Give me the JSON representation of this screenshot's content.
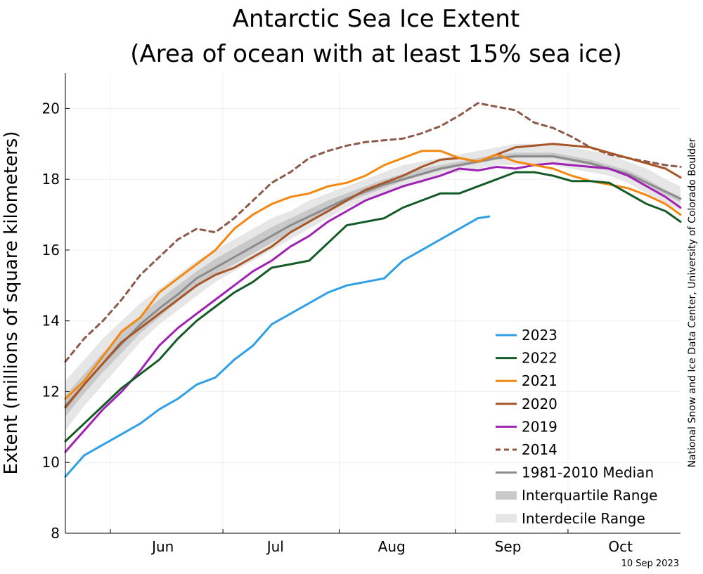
{
  "chart_data": {
    "type": "line",
    "title": "Antarctic Sea Ice Extent",
    "subtitle": "(Area of ocean with at least 15% sea ice)",
    "ylabel": "Extent (millions of square kilometers)",
    "xlabel": "",
    "ylim": [
      8,
      21
    ],
    "yticks": [
      8,
      10,
      12,
      14,
      16,
      18,
      20
    ],
    "xlim": [
      "05-20",
      "10-31"
    ],
    "month_ticks": [
      {
        "label": "Jun",
        "date": "06-15"
      },
      {
        "label": "Jul",
        "date": "07-15"
      },
      {
        "label": "Aug",
        "date": "08-15"
      },
      {
        "label": "Sep",
        "date": "09-15"
      },
      {
        "label": "Oct",
        "date": "10-15"
      }
    ],
    "month_boundaries": [
      "06-01",
      "07-01",
      "08-01",
      "09-01",
      "10-01"
    ],
    "grid": true,
    "legend_position": "lower-right",
    "x": [
      "05-20",
      "05-25",
      "05-30",
      "06-04",
      "06-09",
      "06-14",
      "06-19",
      "06-24",
      "06-29",
      "07-04",
      "07-09",
      "07-14",
      "07-19",
      "07-24",
      "07-29",
      "08-03",
      "08-08",
      "08-13",
      "08-18",
      "08-23",
      "08-28",
      "09-02",
      "09-07",
      "09-12",
      "09-17",
      "09-22",
      "09-27",
      "10-02",
      "10-07",
      "10-12",
      "10-17",
      "10-22",
      "10-27",
      "10-31"
    ],
    "interdecile": {
      "low": [
        10.9,
        11.6,
        12.2,
        12.8,
        13.4,
        13.9,
        14.3,
        14.7,
        15.1,
        15.4,
        15.7,
        16.0,
        16.3,
        16.6,
        16.9,
        17.2,
        17.4,
        17.6,
        17.8,
        17.9,
        18.1,
        18.2,
        18.3,
        18.4,
        18.4,
        18.4,
        18.4,
        18.3,
        18.2,
        18.1,
        17.9,
        17.6,
        17.3,
        17.1
      ],
      "high": [
        12.3,
        12.9,
        13.5,
        14.0,
        14.5,
        14.9,
        15.3,
        15.7,
        16.0,
        16.3,
        16.6,
        16.9,
        17.1,
        17.4,
        17.6,
        17.8,
        18.0,
        18.2,
        18.4,
        18.5,
        18.6,
        18.7,
        18.8,
        18.9,
        19.0,
        19.0,
        19.0,
        18.9,
        18.8,
        18.7,
        18.5,
        18.3,
        18.0,
        17.8
      ]
    },
    "interquartile": {
      "low": [
        11.3,
        11.95,
        12.55,
        13.1,
        13.65,
        14.1,
        14.55,
        14.95,
        15.3,
        15.6,
        15.9,
        16.2,
        16.5,
        16.8,
        17.05,
        17.35,
        17.55,
        17.75,
        17.95,
        18.1,
        18.25,
        18.35,
        18.45,
        18.55,
        18.6,
        18.6,
        18.6,
        18.5,
        18.4,
        18.25,
        18.1,
        17.85,
        17.55,
        17.35
      ],
      "high": [
        11.9,
        12.5,
        13.1,
        13.65,
        14.15,
        14.6,
        15.0,
        15.4,
        15.75,
        16.05,
        16.35,
        16.65,
        16.9,
        17.15,
        17.4,
        17.6,
        17.8,
        18.0,
        18.15,
        18.3,
        18.4,
        18.5,
        18.6,
        18.7,
        18.75,
        18.75,
        18.75,
        18.65,
        18.55,
        18.4,
        18.25,
        18.0,
        17.7,
        17.5
      ]
    },
    "series": [
      {
        "name": "2023",
        "color": "#2f9fe6",
        "dash": "solid",
        "x": [
          "05-20",
          "05-25",
          "05-30",
          "06-04",
          "06-09",
          "06-14",
          "06-19",
          "06-24",
          "06-29",
          "07-04",
          "07-09",
          "07-14",
          "07-19",
          "07-24",
          "07-29",
          "08-03",
          "08-08",
          "08-13",
          "08-18",
          "08-23",
          "08-28",
          "09-02",
          "09-07",
          "09-10"
        ],
        "values": [
          9.6,
          10.2,
          10.5,
          10.8,
          11.1,
          11.5,
          11.8,
          12.2,
          12.4,
          12.9,
          13.3,
          13.9,
          14.2,
          14.5,
          14.8,
          15.0,
          15.1,
          15.2,
          15.7,
          16.0,
          16.3,
          16.6,
          16.9,
          16.95
        ]
      },
      {
        "name": "2022",
        "color": "#155b28",
        "dash": "solid",
        "values": [
          10.6,
          11.1,
          11.6,
          12.1,
          12.5,
          12.9,
          13.5,
          14.0,
          14.4,
          14.8,
          15.1,
          15.5,
          15.6,
          15.7,
          16.2,
          16.7,
          16.8,
          16.9,
          17.2,
          17.4,
          17.6,
          17.6,
          17.8,
          18.0,
          18.2,
          18.2,
          18.1,
          17.95,
          17.95,
          17.9,
          17.6,
          17.3,
          17.1,
          16.8
        ]
      },
      {
        "name": "2021",
        "color": "#f4870e",
        "dash": "solid",
        "values": [
          11.8,
          12.3,
          13.0,
          13.7,
          14.1,
          14.8,
          15.2,
          15.6,
          16.0,
          16.6,
          17.0,
          17.3,
          17.5,
          17.6,
          17.8,
          17.9,
          18.1,
          18.4,
          18.6,
          18.8,
          18.8,
          18.6,
          18.5,
          18.7,
          18.5,
          18.4,
          18.3,
          18.1,
          17.95,
          17.85,
          17.75,
          17.55,
          17.3,
          17.0
        ]
      },
      {
        "name": "2020",
        "color": "#a65628",
        "dash": "solid",
        "values": [
          11.55,
          12.2,
          12.8,
          13.4,
          13.8,
          14.2,
          14.6,
          15.0,
          15.3,
          15.5,
          15.8,
          16.1,
          16.5,
          16.8,
          17.1,
          17.4,
          17.7,
          17.9,
          18.1,
          18.35,
          18.55,
          18.6,
          18.5,
          18.7,
          18.9,
          18.95,
          19.0,
          18.95,
          18.9,
          18.75,
          18.6,
          18.45,
          18.3,
          18.05
        ]
      },
      {
        "name": "2019",
        "color": "#9f22b3",
        "dash": "solid",
        "values": [
          10.3,
          10.9,
          11.5,
          12.0,
          12.6,
          13.3,
          13.8,
          14.2,
          14.6,
          15.0,
          15.4,
          15.7,
          16.1,
          16.4,
          16.8,
          17.1,
          17.4,
          17.6,
          17.8,
          17.95,
          18.1,
          18.3,
          18.25,
          18.35,
          18.3,
          18.4,
          18.45,
          18.4,
          18.35,
          18.3,
          18.1,
          17.8,
          17.5,
          17.2
        ]
      },
      {
        "name": "2014",
        "color": "#8c5a4a",
        "dash": "dashed",
        "values": [
          12.85,
          13.5,
          14.0,
          14.6,
          15.3,
          15.8,
          16.3,
          16.6,
          16.5,
          16.9,
          17.4,
          17.9,
          18.2,
          18.6,
          18.8,
          18.95,
          19.05,
          19.1,
          19.15,
          19.3,
          19.5,
          19.8,
          20.15,
          20.05,
          19.95,
          19.6,
          19.45,
          19.2,
          18.9,
          18.7,
          18.6,
          18.5,
          18.4,
          18.35
        ]
      },
      {
        "name": "1981-2010 Median",
        "color": "#8c8c8c",
        "dash": "solid",
        "values": [
          11.6,
          12.2,
          12.8,
          13.35,
          13.9,
          14.35,
          14.75,
          15.2,
          15.5,
          15.8,
          16.1,
          16.4,
          16.7,
          16.95,
          17.2,
          17.45,
          17.65,
          17.85,
          18.0,
          18.15,
          18.3,
          18.4,
          18.5,
          18.6,
          18.65,
          18.65,
          18.65,
          18.55,
          18.45,
          18.3,
          18.15,
          17.9,
          17.65,
          17.45
        ]
      }
    ],
    "legend": [
      {
        "label": "2023",
        "kind": "line",
        "color": "#2f9fe6"
      },
      {
        "label": "2022",
        "kind": "line",
        "color": "#155b28"
      },
      {
        "label": "2021",
        "kind": "line",
        "color": "#f4870e"
      },
      {
        "label": "2020",
        "kind": "line",
        "color": "#a65628"
      },
      {
        "label": "2019",
        "kind": "line",
        "color": "#9f22b3"
      },
      {
        "label": "2014",
        "kind": "dashed",
        "color": "#8c5a4a"
      },
      {
        "label": "1981-2010 Median",
        "kind": "line",
        "color": "#8c8c8c"
      },
      {
        "label": "Interquartile Range",
        "kind": "band",
        "color": "#c9c9c9"
      },
      {
        "label": "Interdecile Range",
        "kind": "band",
        "color": "#e6e6e6"
      }
    ],
    "credit": "National Snow and Ice Data Center, University of Colorado Boulder",
    "date_label": "10 Sep 2023"
  }
}
